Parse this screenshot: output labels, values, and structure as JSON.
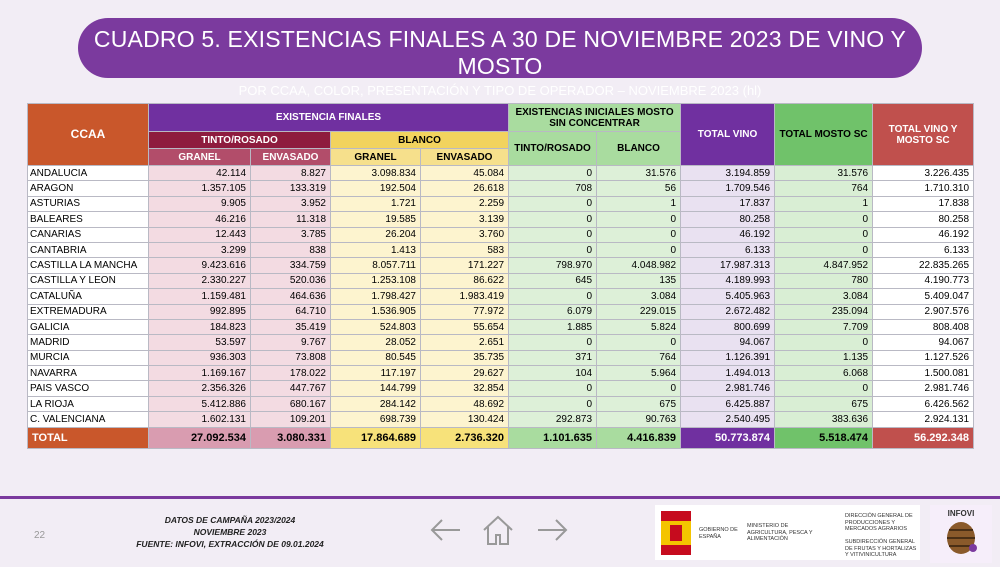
{
  "header": {
    "title": "CUADRO 5. EXISTENCIAS FINALES A 30 DE NOVIEMBRE 2023 DE VINO Y MOSTO",
    "subtitle": "POR CCAA, COLOR, PRESENTACIÓN Y TIPO DE OPERADOR – NOVIEMBRE 2023 (hl)"
  },
  "table": {
    "header_row_1": [
      "CCAA",
      "EXISTENCIA FINALES",
      "EXISTENCIAS INICIALES MOSTO SIN CONCENTRAR",
      "TOTAL VINO",
      "TOTAL MOSTO SC",
      "TOTAL VINO Y MOSTO SC"
    ],
    "header_row_2": [
      "TINTO/ROSADO",
      "BLANCO",
      "TINTO/ROSADO",
      "BLANCO"
    ],
    "header_row_3": [
      "GRANEL",
      "ENVASADO",
      "GRANEL",
      "ENVASADO"
    ],
    "rows": [
      [
        "ANDALUCIA",
        "42.114",
        "8.827",
        "3.098.834",
        "45.084",
        "0",
        "31.576",
        "3.194.859",
        "31.576",
        "3.226.435"
      ],
      [
        "ARAGON",
        "1.357.105",
        "133.319",
        "192.504",
        "26.618",
        "708",
        "56",
        "1.709.546",
        "764",
        "1.710.310"
      ],
      [
        "ASTURIAS",
        "9.905",
        "3.952",
        "1.721",
        "2.259",
        "0",
        "1",
        "17.837",
        "1",
        "17.838"
      ],
      [
        "BALEARES",
        "46.216",
        "11.318",
        "19.585",
        "3.139",
        "0",
        "0",
        "80.258",
        "0",
        "80.258"
      ],
      [
        "CANARIAS",
        "12.443",
        "3.785",
        "26.204",
        "3.760",
        "0",
        "0",
        "46.192",
        "0",
        "46.192"
      ],
      [
        "CANTABRIA",
        "3.299",
        "838",
        "1.413",
        "583",
        "0",
        "0",
        "6.133",
        "0",
        "6.133"
      ],
      [
        "CASTILLA LA MANCHA",
        "9.423.616",
        "334.759",
        "8.057.711",
        "171.227",
        "798.970",
        "4.048.982",
        "17.987.313",
        "4.847.952",
        "22.835.265"
      ],
      [
        "CASTILLA Y LEON",
        "2.330.227",
        "520.036",
        "1.253.108",
        "86.622",
        "645",
        "135",
        "4.189.993",
        "780",
        "4.190.773"
      ],
      [
        "CATALUÑA",
        "1.159.481",
        "464.636",
        "1.798.427",
        "1.983.419",
        "0",
        "3.084",
        "5.405.963",
        "3.084",
        "5.409.047"
      ],
      [
        "EXTREMADURA",
        "992.895",
        "64.710",
        "1.536.905",
        "77.972",
        "6.079",
        "229.015",
        "2.672.482",
        "235.094",
        "2.907.576"
      ],
      [
        "GALICIA",
        "184.823",
        "35.419",
        "524.803",
        "55.654",
        "1.885",
        "5.824",
        "800.699",
        "7.709",
        "808.408"
      ],
      [
        "MADRID",
        "53.597",
        "9.767",
        "28.052",
        "2.651",
        "0",
        "0",
        "94.067",
        "0",
        "94.067"
      ],
      [
        "MURCIA",
        "936.303",
        "73.808",
        "80.545",
        "35.735",
        "371",
        "764",
        "1.126.391",
        "1.135",
        "1.127.526"
      ],
      [
        "NAVARRA",
        "1.169.167",
        "178.022",
        "117.197",
        "29.627",
        "104",
        "5.964",
        "1.494.013",
        "6.068",
        "1.500.081"
      ],
      [
        "PAIS VASCO",
        "2.356.326",
        "447.767",
        "144.799",
        "32.854",
        "0",
        "0",
        "2.981.746",
        "0",
        "2.981.746"
      ],
      [
        "LA RIOJA",
        "5.412.886",
        "680.167",
        "284.142",
        "48.692",
        "0",
        "675",
        "6.425.887",
        "675",
        "6.426.562"
      ],
      [
        "C. VALENCIANA",
        "1.602.131",
        "109.201",
        "698.739",
        "130.424",
        "292.873",
        "90.763",
        "2.540.495",
        "383.636",
        "2.924.131"
      ]
    ],
    "total": [
      "TOTAL",
      "27.092.534",
      "3.080.331",
      "17.864.689",
      "2.736.320",
      "1.101.635",
      "4.416.839",
      "50.773.874",
      "5.518.474",
      "56.292.348"
    ]
  },
  "footer": {
    "page": "22",
    "lines": [
      "DATOS DE CAMPAÑA 2023/2024",
      "NOVIEMBRE 2023",
      "FUENTE: INFOVI, EXTRACCIÓN DE 09.01.2024"
    ],
    "logos": {
      "government": "GOBIERNO DE ESPAÑA",
      "ministry": "MINISTERIO DE AGRICULTURA, PESCA Y ALIMENTACIÓN",
      "directorate": "DIRECCIÓN GENERAL DE PRODUCCIONES Y MERCADOS AGRARIOS",
      "subdirectorate": "SUBDIRECCIÓN GENERAL DE FRUTAS Y HORTALIZAS Y VITIVINICULTURA",
      "infovi": "INFOVI"
    }
  }
}
